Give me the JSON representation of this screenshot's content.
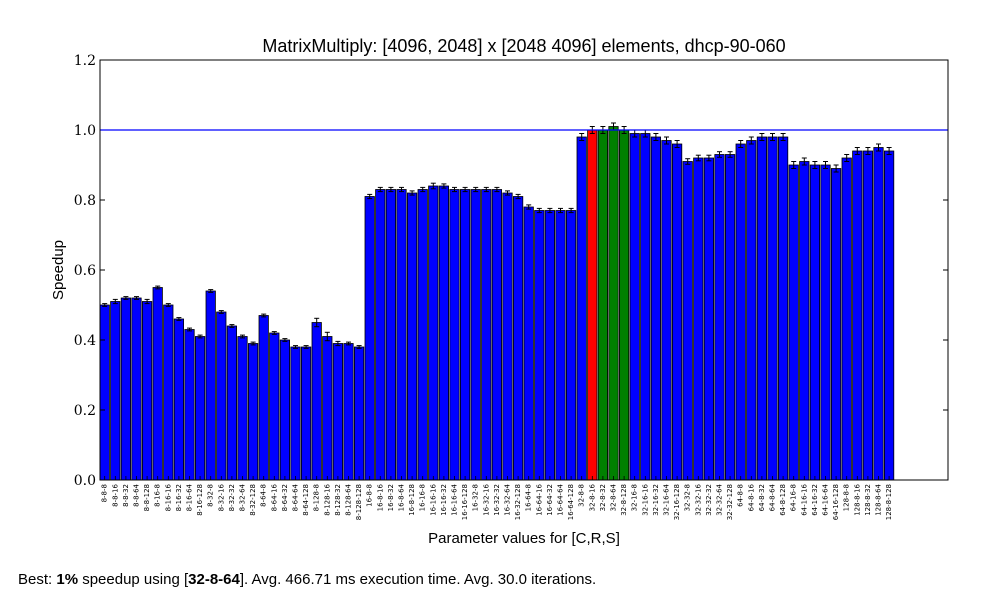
{
  "chart_data": {
    "type": "bar",
    "title": "MatrixMultiply: [4096, 2048] x [2048 4096] elements, dhcp-90-060",
    "xlabel": "Parameter values for [C,R,S]",
    "ylabel": "Speedup",
    "ylim": [
      0,
      1.2
    ],
    "yticks": [
      "0.0",
      "0.2",
      "0.4",
      "0.6",
      "0.8",
      "1.0",
      "1.2"
    ],
    "yticks_values": [
      0.0,
      0.2,
      0.4,
      0.6,
      0.8,
      1.0,
      1.2
    ],
    "reference_line": 1.0,
    "grid": false,
    "categories": [
      "8-8-8",
      "8-8-16",
      "8-8-32",
      "8-8-64",
      "8-8-128",
      "8-16-8",
      "8-16-16",
      "8-16-32",
      "8-16-64",
      "8-16-128",
      "8-32-8",
      "8-32-16",
      "8-32-32",
      "8-32-64",
      "8-32-128",
      "8-64-8",
      "8-64-16",
      "8-64-32",
      "8-64-64",
      "8-64-128",
      "8-128-8",
      "8-128-16",
      "8-128-32",
      "8-128-64",
      "8-128-128",
      "16-8-8",
      "16-8-16",
      "16-8-32",
      "16-8-64",
      "16-8-128",
      "16-16-8",
      "16-16-16",
      "16-16-32",
      "16-16-64",
      "16-16-128",
      "16-32-8",
      "16-32-16",
      "16-32-32",
      "16-32-64",
      "16-32-128",
      "16-64-8",
      "16-64-16",
      "16-64-32",
      "16-64-64",
      "16-64-128",
      "32-8-8",
      "32-8-16",
      "32-8-32",
      "32-8-64",
      "32-8-128",
      "32-16-8",
      "32-16-16",
      "32-16-32",
      "32-16-64",
      "32-16-128",
      "32-32-8",
      "32-32-16",
      "32-32-32",
      "32-32-64",
      "32-32-128",
      "64-8-8",
      "64-8-16",
      "64-8-32",
      "64-8-64",
      "64-8-128",
      "64-16-8",
      "64-16-16",
      "64-16-32",
      "64-16-64",
      "64-16-128",
      "128-8-8",
      "128-8-16",
      "128-8-32",
      "128-8-64",
      "128-8-128"
    ],
    "values": [
      0.5,
      0.51,
      0.52,
      0.52,
      0.51,
      0.55,
      0.5,
      0.46,
      0.43,
      0.41,
      0.54,
      0.48,
      0.44,
      0.41,
      0.39,
      0.47,
      0.42,
      0.4,
      0.38,
      0.38,
      0.45,
      0.41,
      0.39,
      0.39,
      0.38,
      0.81,
      0.83,
      0.83,
      0.83,
      0.82,
      0.83,
      0.84,
      0.84,
      0.83,
      0.83,
      0.83,
      0.83,
      0.83,
      0.82,
      0.81,
      0.78,
      0.77,
      0.77,
      0.77,
      0.77,
      0.98,
      1.0,
      1.0,
      1.01,
      1.0,
      0.99,
      0.99,
      0.98,
      0.97,
      0.96,
      0.91,
      0.92,
      0.92,
      0.93,
      0.93,
      0.96,
      0.97,
      0.98,
      0.98,
      0.98,
      0.9,
      0.91,
      0.9,
      0.9,
      0.89,
      0.92,
      0.94,
      0.94,
      0.95,
      0.94
    ],
    "errors": [
      0.004,
      0.006,
      0.004,
      0.004,
      0.006,
      0.004,
      0.004,
      0.004,
      0.004,
      0.004,
      0.004,
      0.004,
      0.004,
      0.004,
      0.004,
      0.004,
      0.004,
      0.004,
      0.004,
      0.004,
      0.012,
      0.012,
      0.006,
      0.004,
      0.004,
      0.006,
      0.006,
      0.006,
      0.006,
      0.006,
      0.006,
      0.008,
      0.006,
      0.006,
      0.006,
      0.006,
      0.006,
      0.006,
      0.006,
      0.006,
      0.006,
      0.006,
      0.006,
      0.006,
      0.006,
      0.01,
      0.01,
      0.01,
      0.01,
      0.01,
      0.01,
      0.01,
      0.01,
      0.01,
      0.01,
      0.008,
      0.008,
      0.008,
      0.008,
      0.008,
      0.01,
      0.01,
      0.01,
      0.01,
      0.01,
      0.01,
      0.01,
      0.01,
      0.01,
      0.01,
      0.01,
      0.01,
      0.01,
      0.01,
      0.01
    ],
    "baseline_index": 46,
    "best_indices": [
      47,
      48,
      49
    ],
    "colors": {
      "default": "#0000ff",
      "baseline": "#ff0000",
      "best": "#008000",
      "reference_line": "#0000ff",
      "edge": "#000000"
    }
  },
  "footer": {
    "prefix": "Best: ",
    "speedup": "1%",
    "mid1": " speedup using [",
    "config": "32-8-64",
    "suffix": "]. Avg. 466.71 ms execution time. Avg. 30.0 iterations."
  }
}
